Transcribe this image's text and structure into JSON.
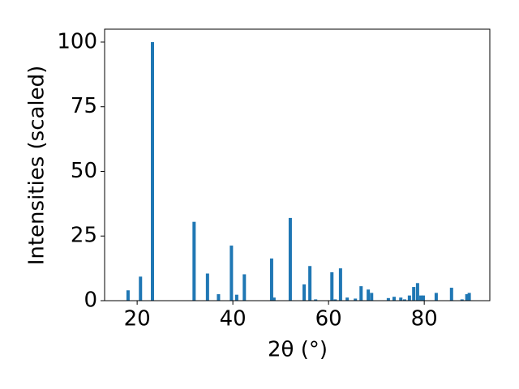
{
  "chart_data": {
    "type": "bar",
    "x_label": "2θ (°)",
    "y_label": "Intensities (scaled)",
    "color": "#1f77b4",
    "x": [
      18.1,
      20.7,
      23.2,
      31.9,
      34.7,
      37.0,
      39.7,
      40.8,
      42.4,
      48.1,
      48.6,
      52.0,
      54.9,
      56.1,
      57.3,
      60.7,
      61.4,
      62.5,
      63.9,
      65.6,
      66.8,
      68.3,
      69.0,
      72.5,
      73.7,
      75.1,
      75.9,
      76.9,
      77.8,
      78.6,
      79.3,
      79.8,
      82.5,
      85.7,
      87.9,
      88.9,
      89.4
    ],
    "values": [
      4,
      9.3,
      100,
      30.5,
      10.5,
      2.5,
      21.3,
      2.3,
      10.2,
      16.3,
      1.2,
      32,
      6.3,
      13.4,
      0.5,
      11,
      0.5,
      12.5,
      1.2,
      0.8,
      5.6,
      4.3,
      3,
      1,
      1.5,
      1.2,
      0.5,
      2,
      5.3,
      6.8,
      2,
      2,
      3,
      5,
      0.5,
      2.5,
      3
    ],
    "xlim": [
      13.2,
      93.7
    ],
    "ylim": [
      0,
      105
    ],
    "xticks": [
      20,
      40,
      60,
      80
    ],
    "yticks": [
      0,
      25,
      50,
      75,
      100
    ]
  }
}
